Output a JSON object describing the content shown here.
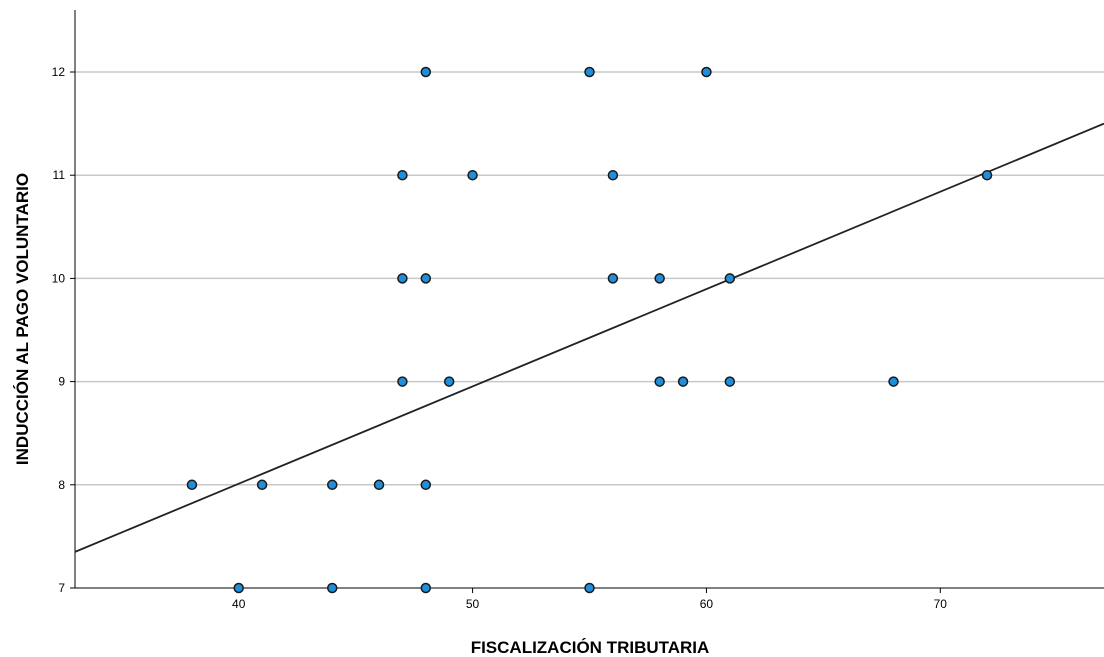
{
  "chart_data": {
    "type": "scatter",
    "xlabel": "FISCALIZACIÓN TRIBUTARIA",
    "ylabel": "INDUCCIÓN AL PAGO VOLUNTARIO",
    "xlim": [
      33,
      77
    ],
    "ylim": [
      7,
      12.6
    ],
    "x_ticks": [
      40,
      50,
      60,
      70
    ],
    "y_ticks": [
      7,
      8,
      9,
      10,
      11,
      12
    ],
    "grid": "horizontal",
    "points": [
      {
        "x": 48,
        "y": 12
      },
      {
        "x": 55,
        "y": 12
      },
      {
        "x": 60,
        "y": 12
      },
      {
        "x": 47,
        "y": 11
      },
      {
        "x": 50,
        "y": 11
      },
      {
        "x": 56,
        "y": 11
      },
      {
        "x": 72,
        "y": 11
      },
      {
        "x": 47,
        "y": 10
      },
      {
        "x": 48,
        "y": 10
      },
      {
        "x": 56,
        "y": 10
      },
      {
        "x": 58,
        "y": 10
      },
      {
        "x": 61,
        "y": 10
      },
      {
        "x": 47,
        "y": 9
      },
      {
        "x": 49,
        "y": 9
      },
      {
        "x": 58,
        "y": 9
      },
      {
        "x": 59,
        "y": 9
      },
      {
        "x": 61,
        "y": 9
      },
      {
        "x": 68,
        "y": 9
      },
      {
        "x": 38,
        "y": 8
      },
      {
        "x": 41,
        "y": 8
      },
      {
        "x": 44,
        "y": 8
      },
      {
        "x": 46,
        "y": 8
      },
      {
        "x": 48,
        "y": 8
      },
      {
        "x": 40,
        "y": 7
      },
      {
        "x": 44,
        "y": 7
      },
      {
        "x": 48,
        "y": 7
      },
      {
        "x": 55,
        "y": 7
      }
    ],
    "fit_line": {
      "x": [
        33,
        77
      ],
      "y": [
        7.35,
        11.5
      ]
    },
    "colors": {
      "point_fill": "#1f8fdc",
      "point_stroke": "#1a1a1a",
      "fit_line": "#222222",
      "grid": "#c8c8c8",
      "axis": "#000000"
    }
  }
}
